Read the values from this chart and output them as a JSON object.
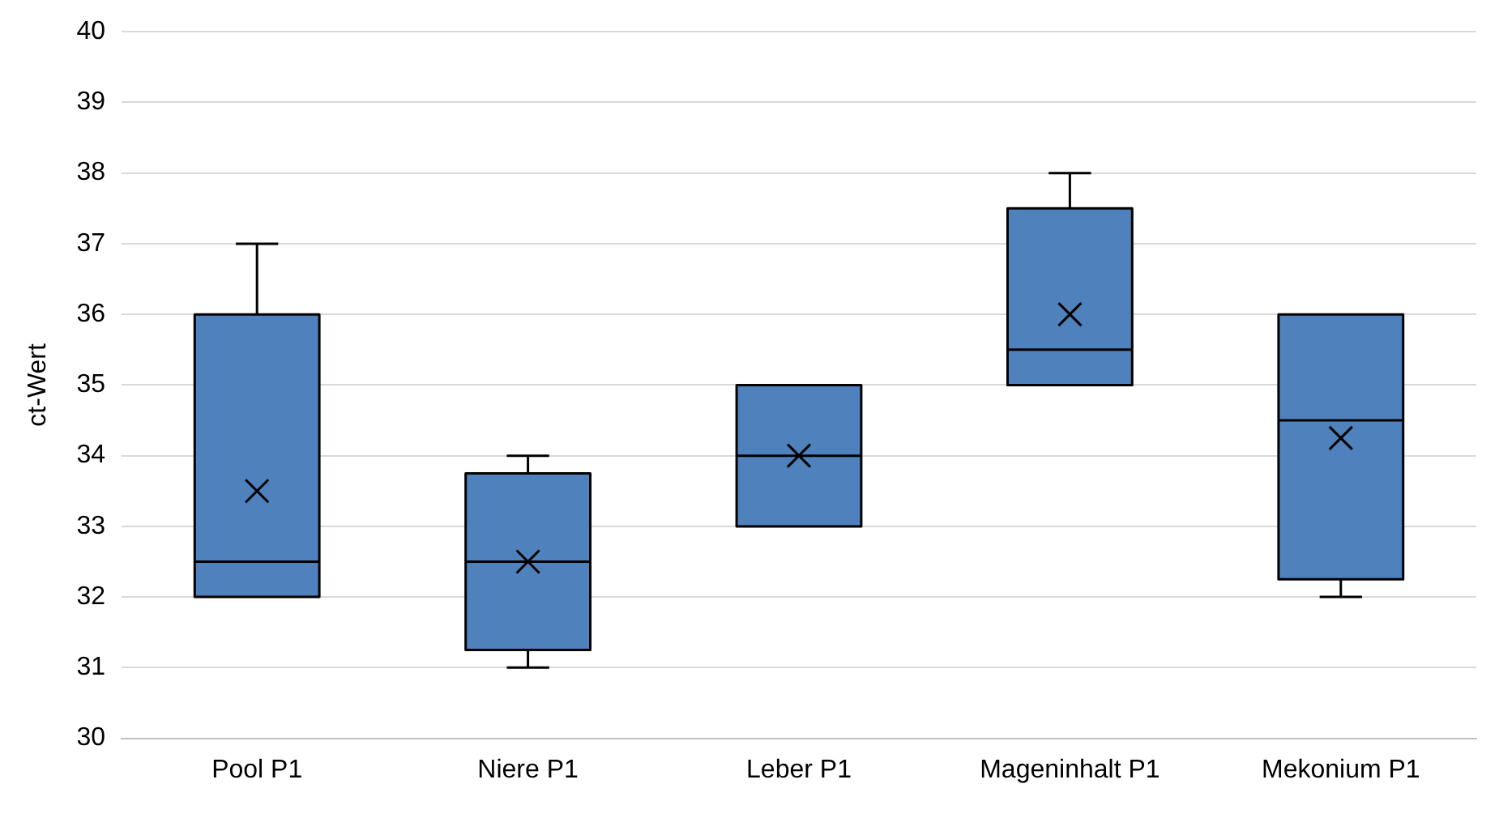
{
  "chart_data": {
    "type": "box",
    "ylabel": "ct-Wert",
    "categories": [
      "Pool P1",
      "Niere P1",
      "Leber P1",
      "Mageninhalt P1",
      "Mekonium P1"
    ],
    "boxes": [
      {
        "low": 32,
        "q1": 32,
        "median": 32.5,
        "q3": 36,
        "high": 37,
        "mean": 33.5
      },
      {
        "low": 31,
        "q1": 31.25,
        "median": 32.5,
        "q3": 33.75,
        "high": 34,
        "mean": 32.5
      },
      {
        "low": 33,
        "q1": 33,
        "median": 34,
        "q3": 35,
        "high": 35,
        "mean": 34
      },
      {
        "low": 35,
        "q1": 35,
        "median": 35.5,
        "q3": 37.5,
        "high": 38,
        "mean": 36
      },
      {
        "low": 32,
        "q1": 32.25,
        "median": 34.5,
        "q3": 36,
        "high": 36,
        "mean": 34.25
      }
    ],
    "color": "#4f81bd",
    "marker": "cross",
    "ylim": [
      30,
      40
    ],
    "yticks": [
      30,
      31,
      32,
      33,
      34,
      35,
      36,
      37,
      38,
      39,
      40
    ],
    "grid": "y"
  }
}
